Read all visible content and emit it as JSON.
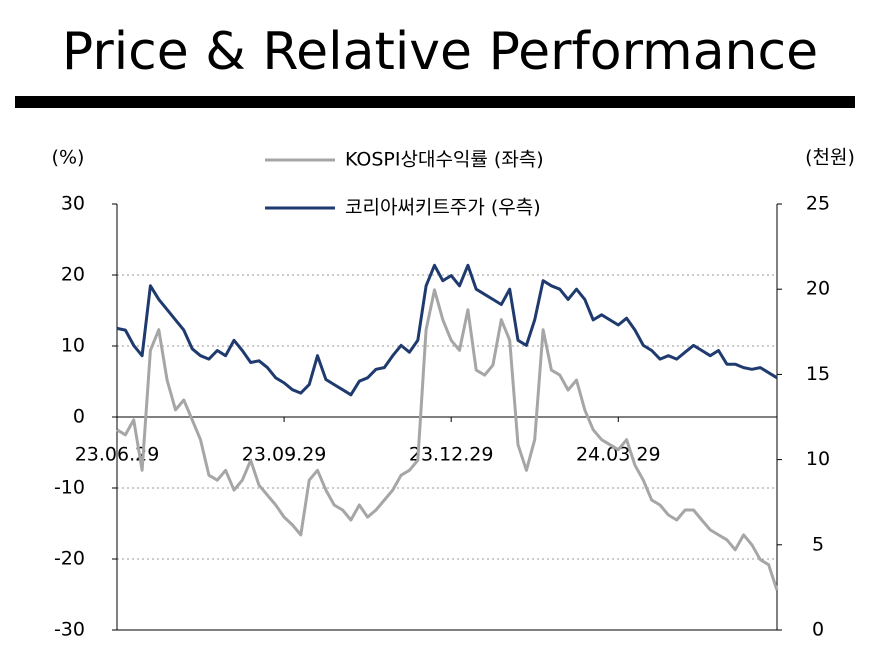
{
  "chart_data": {
    "type": "line",
    "title": "Price & Relative Performance",
    "ylabel": "(%)",
    "y2label": "(천원)",
    "categories": [
      "23.06.29",
      null,
      null,
      null,
      null,
      null,
      null,
      null,
      null,
      null,
      null,
      null,
      null,
      null,
      null,
      null,
      null,
      null,
      null,
      null,
      "23.09.29",
      null,
      null,
      null,
      null,
      null,
      null,
      null,
      null,
      null,
      null,
      null,
      null,
      null,
      null,
      null,
      null,
      null,
      null,
      null,
      "23.12.29",
      null,
      null,
      null,
      null,
      null,
      null,
      null,
      null,
      null,
      null,
      null,
      null,
      null,
      null,
      null,
      null,
      null,
      null,
      null,
      "24.03.29",
      null,
      null,
      null,
      null,
      null,
      null,
      null,
      null,
      null,
      null,
      null,
      null,
      null,
      null,
      null,
      null,
      null,
      null,
      null
    ],
    "series": [
      {
        "name": "KOSPI상대수익률 (좌측)",
        "color": "#a6a6a6",
        "axis": "y",
        "values": [
          -1.8,
          -2.5,
          -0.4,
          -7.5,
          9.4,
          12.3,
          5.2,
          1.0,
          2.4,
          -0.4,
          -3.2,
          -8.2,
          -8.9,
          -7.5,
          -10.3,
          -8.9,
          -6.1,
          -9.6,
          -11.0,
          -12.4,
          -14.1,
          -15.2,
          -16.6,
          -8.9,
          -7.5,
          -10.3,
          -12.4,
          -13.1,
          -14.5,
          -12.4,
          -14.1,
          -13.1,
          -11.7,
          -10.3,
          -8.2,
          -7.5,
          -6.1,
          12.3,
          17.9,
          13.7,
          10.8,
          9.4,
          15.1,
          6.6,
          5.9,
          7.3,
          13.7,
          10.8,
          -3.9,
          -7.5,
          -3.2,
          12.3,
          6.6,
          5.9,
          3.8,
          5.2,
          1.0,
          -1.8,
          -3.2,
          -3.9,
          -4.6,
          -3.2,
          -6.8,
          -8.9,
          -11.7,
          -12.4,
          -13.8,
          -14.5,
          -13.1,
          -13.1,
          -14.5,
          -15.9,
          -16.6,
          -17.3,
          -18.7,
          -16.6,
          -18.0,
          -20.1,
          -20.8,
          -24.4
        ]
      },
      {
        "name": "코리아써키트주가 (우측)",
        "color": "#1f3a6e",
        "axis": "y2",
        "values": [
          17.7,
          17.6,
          16.7,
          16.1,
          20.2,
          19.4,
          18.8,
          18.2,
          17.6,
          16.5,
          16.1,
          15.9,
          16.4,
          16.1,
          17.0,
          16.4,
          15.7,
          15.8,
          15.4,
          14.8,
          14.5,
          14.1,
          13.9,
          14.4,
          16.1,
          14.7,
          14.4,
          14.1,
          13.8,
          14.6,
          14.8,
          15.3,
          15.4,
          16.1,
          16.7,
          16.3,
          17.0,
          20.2,
          21.4,
          20.5,
          20.8,
          20.2,
          21.4,
          20.0,
          19.7,
          19.4,
          19.1,
          20.0,
          17.0,
          16.7,
          18.2,
          20.5,
          20.2,
          20.0,
          19.4,
          20.0,
          19.4,
          18.2,
          18.5,
          18.2,
          17.9,
          18.3,
          17.6,
          16.7,
          16.4,
          15.9,
          16.1,
          15.9,
          16.3,
          16.7,
          16.4,
          16.1,
          16.4,
          15.6,
          15.6,
          15.4,
          15.3,
          15.4,
          15.1,
          14.8
        ]
      }
    ],
    "ylim": [
      -30,
      30
    ],
    "yticks": [
      -30,
      -20,
      -10,
      0,
      10,
      20,
      30
    ],
    "y2lim": [
      0,
      25
    ],
    "y2ticks": [
      0,
      5,
      10,
      15,
      20,
      25
    ],
    "grid": true,
    "legend": "top"
  }
}
